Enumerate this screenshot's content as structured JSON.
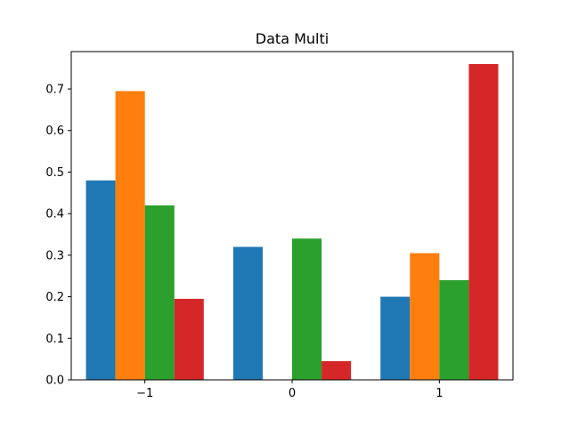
{
  "chart_data": {
    "type": "bar",
    "title": "Data Multi",
    "xlabel": "",
    "ylabel": "",
    "categories": [
      "−1",
      "0",
      "1"
    ],
    "x": [
      -1,
      0,
      1
    ],
    "ylim": [
      0,
      0.79
    ],
    "yticks": [
      0.0,
      0.1,
      0.2,
      0.3,
      0.4,
      0.5,
      0.6,
      0.7
    ],
    "ytick_labels": [
      "0.0",
      "0.1",
      "0.2",
      "0.3",
      "0.4",
      "0.5",
      "0.6",
      "0.7"
    ],
    "grid": false,
    "series": [
      {
        "color": "#1f77b4",
        "values": [
          0.48,
          0.32,
          0.2
        ]
      },
      {
        "color": "#ff7f0e",
        "values": [
          0.695,
          0.0,
          0.305
        ]
      },
      {
        "color": "#2ca02c",
        "values": [
          0.42,
          0.34,
          0.24
        ]
      },
      {
        "color": "#d62728",
        "values": [
          0.195,
          0.045,
          0.76
        ]
      }
    ]
  }
}
